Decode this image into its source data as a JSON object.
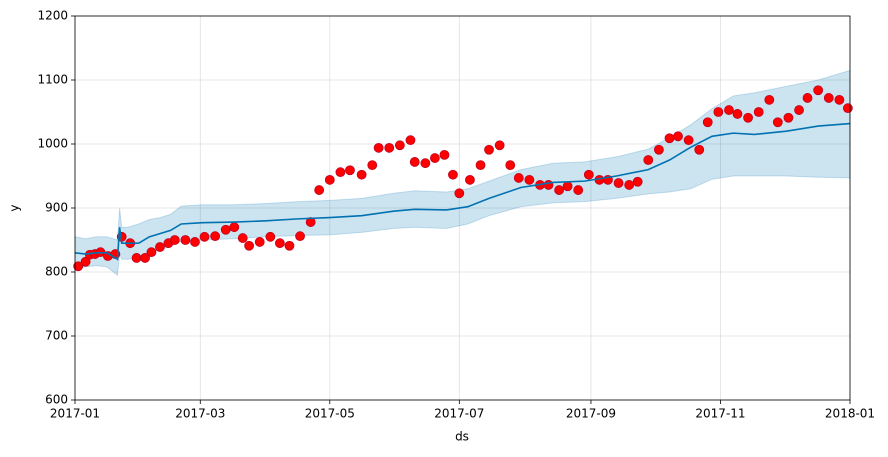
{
  "chart_data": {
    "type": "forecast",
    "xlabel": "ds",
    "ylabel": "y",
    "xlim": [
      0,
      365
    ],
    "xticks": [
      {
        "value": 0,
        "label": "2017-01"
      },
      {
        "value": 59,
        "label": "2017-03"
      },
      {
        "value": 120,
        "label": "2017-05"
      },
      {
        "value": 181,
        "label": "2017-07"
      },
      {
        "value": 243,
        "label": "2017-09"
      },
      {
        "value": 304,
        "label": "2017-11"
      },
      {
        "value": 365,
        "label": "2018-01"
      }
    ],
    "ylim": [
      600,
      1200
    ],
    "yticks": [
      600,
      700,
      800,
      900,
      1000,
      1100,
      1200
    ],
    "grid": true,
    "observed": {
      "color": "#ff0000",
      "edge": "#c00020",
      "x": [
        1.5,
        5,
        7,
        9.4,
        12,
        15.5,
        19,
        22,
        26,
        29,
        33,
        36,
        40,
        44,
        47,
        52,
        56.5,
        61,
        66,
        71,
        75,
        79,
        82,
        87,
        92,
        96.5,
        101,
        106,
        111,
        115,
        120,
        125,
        129.5,
        135,
        140,
        143,
        148,
        153,
        158,
        160,
        165,
        169.5,
        174,
        178,
        181,
        186,
        191,
        195,
        200,
        205,
        209,
        214,
        219,
        223,
        228,
        232,
        237,
        242,
        247,
        251,
        256,
        261,
        265,
        270,
        275,
        280,
        284,
        289,
        294,
        298,
        303,
        308,
        312,
        317,
        322,
        327,
        331,
        336,
        341,
        345,
        350,
        355,
        360,
        364
      ],
      "values": [
        809,
        816,
        827,
        828,
        831,
        825,
        828,
        855,
        845,
        822,
        822,
        831,
        839,
        845,
        850,
        850,
        847,
        855,
        856,
        866,
        870,
        853,
        841,
        847,
        855,
        845,
        841,
        856,
        878,
        928,
        944,
        956,
        959,
        952,
        967,
        994,
        994,
        998,
        1006,
        972,
        970,
        978,
        983,
        952,
        923,
        944,
        967,
        991,
        998,
        967,
        947,
        944,
        936,
        936,
        928,
        934,
        928,
        952,
        944,
        944,
        939,
        936,
        941,
        975,
        991,
        1009,
        1012,
        1006,
        991,
        1034,
        1050,
        1053,
        1047,
        1041,
        1050,
        1069,
        1034,
        1041,
        1053,
        1072,
        1084,
        1072,
        1069,
        1056
      ]
    },
    "forecast": {
      "color": "#0072b2",
      "x": [
        0,
        5,
        10,
        15,
        20,
        21,
        22,
        25,
        30,
        35,
        40,
        45,
        50,
        60,
        75,
        90,
        105,
        120,
        135,
        150,
        160,
        175,
        185,
        195,
        210,
        225,
        240,
        255,
        270,
        280,
        290,
        300,
        310,
        320,
        335,
        350,
        365
      ],
      "values": [
        830,
        828,
        830,
        830,
        820,
        870,
        845,
        845,
        845,
        855,
        860,
        865,
        875,
        877,
        878,
        880,
        883,
        885,
        888,
        895,
        898,
        897,
        902,
        915,
        932,
        940,
        942,
        950,
        960,
        975,
        995,
        1012,
        1017,
        1015,
        1020,
        1028,
        1032
      ],
      "lower": [
        805,
        808,
        810,
        808,
        795,
        830,
        820,
        820,
        822,
        830,
        835,
        840,
        848,
        850,
        852,
        855,
        857,
        858,
        862,
        868,
        870,
        868,
        875,
        888,
        902,
        908,
        910,
        915,
        922,
        925,
        930,
        945,
        950,
        950,
        950,
        948,
        947
      ],
      "upper": [
        855,
        852,
        855,
        855,
        850,
        900,
        870,
        870,
        875,
        882,
        885,
        890,
        903,
        905,
        905,
        907,
        910,
        912,
        915,
        923,
        927,
        925,
        930,
        942,
        960,
        970,
        972,
        980,
        992,
        1010,
        1030,
        1055,
        1075,
        1080,
        1090,
        1100,
        1115
      ]
    }
  }
}
